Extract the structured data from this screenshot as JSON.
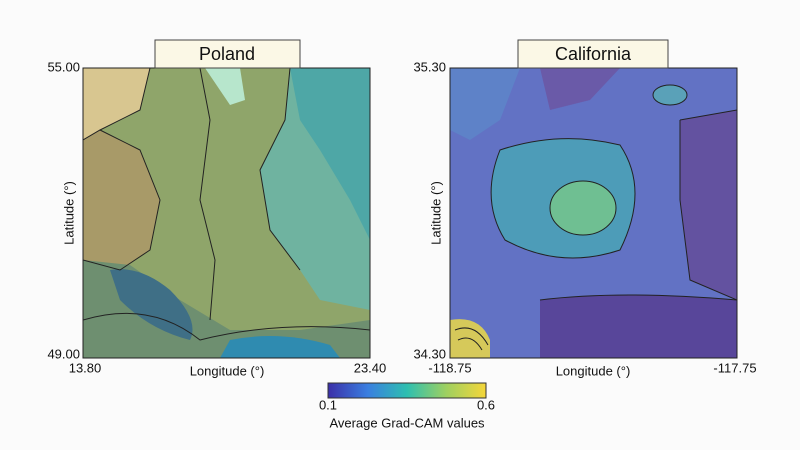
{
  "panels": [
    {
      "title": "Poland",
      "xlabel": "Longitude (°)",
      "ylabel": "Latitude (°)",
      "x_left": "13.80",
      "x_right": "23.40",
      "y_top": "55.00",
      "y_bottom": "49.00"
    },
    {
      "title": "California",
      "xlabel": "Longitude (°)",
      "ylabel": "Latitude (°)",
      "x_left": "-118.75",
      "x_right": "-117.75",
      "y_top": "35.30",
      "y_bottom": "34.30"
    }
  ],
  "colorbar": {
    "min": "0.1",
    "max": "0.6",
    "label": "Average Grad-CAM values",
    "colors": [
      "#3b2fa8",
      "#3a7ee0",
      "#2ebfb0",
      "#9fd060",
      "#f5d63a"
    ]
  }
}
